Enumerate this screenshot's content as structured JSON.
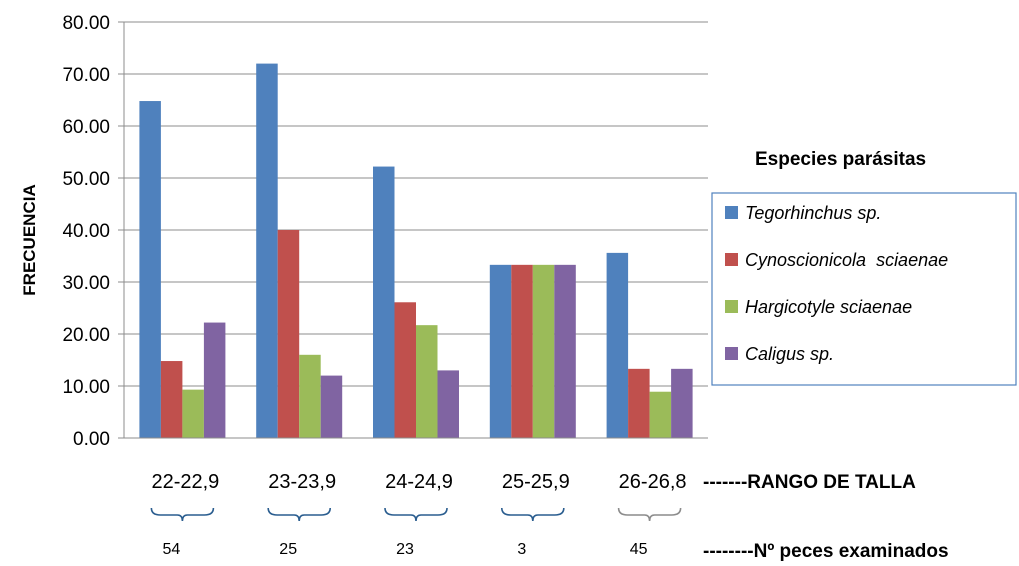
{
  "chart_data": {
    "type": "bar",
    "ylabel": "FRECUENCIA",
    "ylim": [
      0,
      80
    ],
    "yticks": [
      "0.00",
      "10.00",
      "20.00",
      "30.00",
      "40.00",
      "50.00",
      "60.00",
      "70.00",
      "80.00"
    ],
    "grid": true,
    "categories": [
      "22-22,9",
      "23-23,9",
      "24-24,9",
      "25-25,9",
      "26-26,8"
    ],
    "series": [
      {
        "name": "Tegorhinchus sp.",
        "color": "#4F81BD",
        "values": [
          64.8,
          72.0,
          52.2,
          33.3,
          35.6
        ]
      },
      {
        "name": "Cynoscionicola  sciaenae",
        "color": "#C0504D",
        "values": [
          14.8,
          40.0,
          26.1,
          33.3,
          13.3
        ]
      },
      {
        "name": "Hargicotyle sciaenae",
        "color": "#9BBB59",
        "values": [
          9.3,
          16.0,
          21.7,
          33.3,
          8.9
        ]
      },
      {
        "name": "Caligus sp.",
        "color": "#8064A2",
        "values": [
          22.2,
          12.0,
          13.0,
          33.3,
          13.3
        ]
      }
    ],
    "legend_title": "Especies parásitas",
    "legend_position": "right",
    "category_axis_note": "-------RANGO DE TALLA",
    "fish_counts": [
      "54",
      "25",
      "23",
      "3",
      "45"
    ],
    "fish_count_note": "--------Nº peces examinados"
  }
}
